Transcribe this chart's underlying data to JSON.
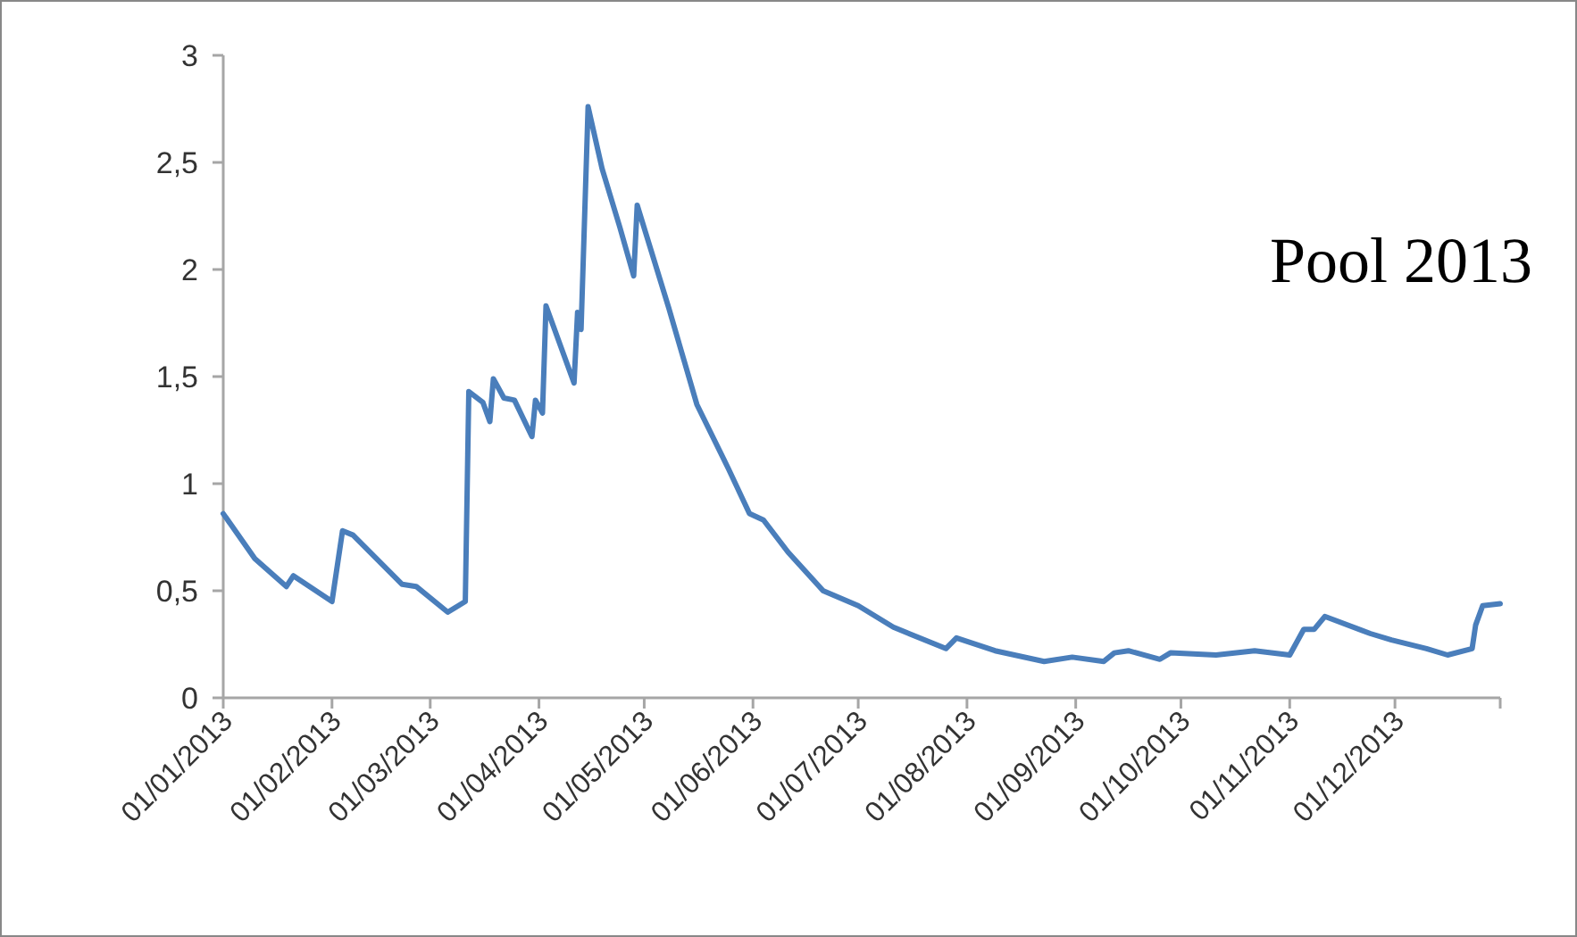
{
  "chart_data": {
    "type": "line",
    "title": "Pool 2013",
    "xlim": [
      "2013-01-01",
      "2013-12-31"
    ],
    "xticks": [
      {
        "value": "2013-01-01",
        "label": "01/01/2013"
      },
      {
        "value": "2013-02-01",
        "label": "01/02/2013"
      },
      {
        "value": "2013-03-01",
        "label": "01/03/2013"
      },
      {
        "value": "2013-04-01",
        "label": "01/04/2013"
      },
      {
        "value": "2013-05-01",
        "label": "01/05/2013"
      },
      {
        "value": "2013-06-01",
        "label": "01/06/2013"
      },
      {
        "value": "2013-07-01",
        "label": "01/07/2013"
      },
      {
        "value": "2013-08-01",
        "label": "01/08/2013"
      },
      {
        "value": "2013-09-01",
        "label": "01/09/2013"
      },
      {
        "value": "2013-10-01",
        "label": "01/10/2013"
      },
      {
        "value": "2013-11-01",
        "label": "01/11/2013"
      },
      {
        "value": "2013-12-01",
        "label": "01/12/2013"
      },
      {
        "value": "2013-12-31",
        "label": null
      }
    ],
    "ylim": [
      0,
      3
    ],
    "yticks": [
      0,
      {
        "value": 0.5,
        "label": "0,5"
      },
      1,
      {
        "value": 1.5,
        "label": "1,5"
      },
      2,
      {
        "value": 2.5,
        "label": "2,5"
      },
      3
    ],
    "grid": false,
    "marker": "none",
    "line_style": "solid",
    "x": [
      "2013-01-01",
      "2013-01-10",
      "2013-01-19",
      "2013-01-21",
      "2013-02-01",
      "2013-02-04",
      "2013-02-07",
      "2013-02-21",
      "2013-02-25",
      "2013-03-06",
      "2013-03-11",
      "2013-03-12",
      "2013-03-16",
      "2013-03-18",
      "2013-03-19",
      "2013-03-22",
      "2013-03-25",
      "2013-03-30",
      "2013-03-31",
      "2013-04-02",
      "2013-04-03",
      "2013-04-11",
      "2013-04-12",
      "2013-04-13",
      "2013-04-15",
      "2013-04-19",
      "2013-04-24",
      "2013-04-28",
      "2013-04-29",
      "2013-05-08",
      "2013-05-16",
      "2013-05-25",
      "2013-05-31",
      "2013-06-04",
      "2013-06-11",
      "2013-06-21",
      "2013-07-01",
      "2013-07-11",
      "2013-07-26",
      "2013-07-29",
      "2013-08-09",
      "2013-08-23",
      "2013-08-31",
      "2013-09-09",
      "2013-09-12",
      "2013-09-16",
      "2013-09-25",
      "2013-09-28",
      "2013-10-11",
      "2013-10-22",
      "2013-11-01",
      "2013-11-05",
      "2013-11-08",
      "2013-11-11",
      "2013-11-24",
      "2013-11-30",
      "2013-12-10",
      "2013-12-16",
      "2013-12-23",
      "2013-12-24",
      "2013-12-26",
      "2013-12-31"
    ],
    "series": [
      {
        "color": "#4a7ebb",
        "values": [
          0.86,
          0.65,
          0.52,
          0.57,
          0.45,
          0.78,
          0.76,
          0.53,
          0.52,
          0.4,
          0.45,
          1.43,
          1.38,
          1.29,
          1.49,
          1.4,
          1.39,
          1.22,
          1.39,
          1.33,
          1.83,
          1.47,
          1.8,
          1.72,
          2.76,
          2.47,
          2.2,
          1.97,
          2.3,
          1.82,
          1.37,
          1.07,
          0.86,
          0.83,
          0.68,
          0.5,
          0.43,
          0.33,
          0.23,
          0.28,
          0.22,
          0.17,
          0.19,
          0.17,
          0.21,
          0.22,
          0.18,
          0.21,
          0.2,
          0.22,
          0.2,
          0.32,
          0.32,
          0.38,
          0.3,
          0.27,
          0.23,
          0.2,
          0.23,
          0.34,
          0.43,
          0.44
        ]
      }
    ]
  }
}
